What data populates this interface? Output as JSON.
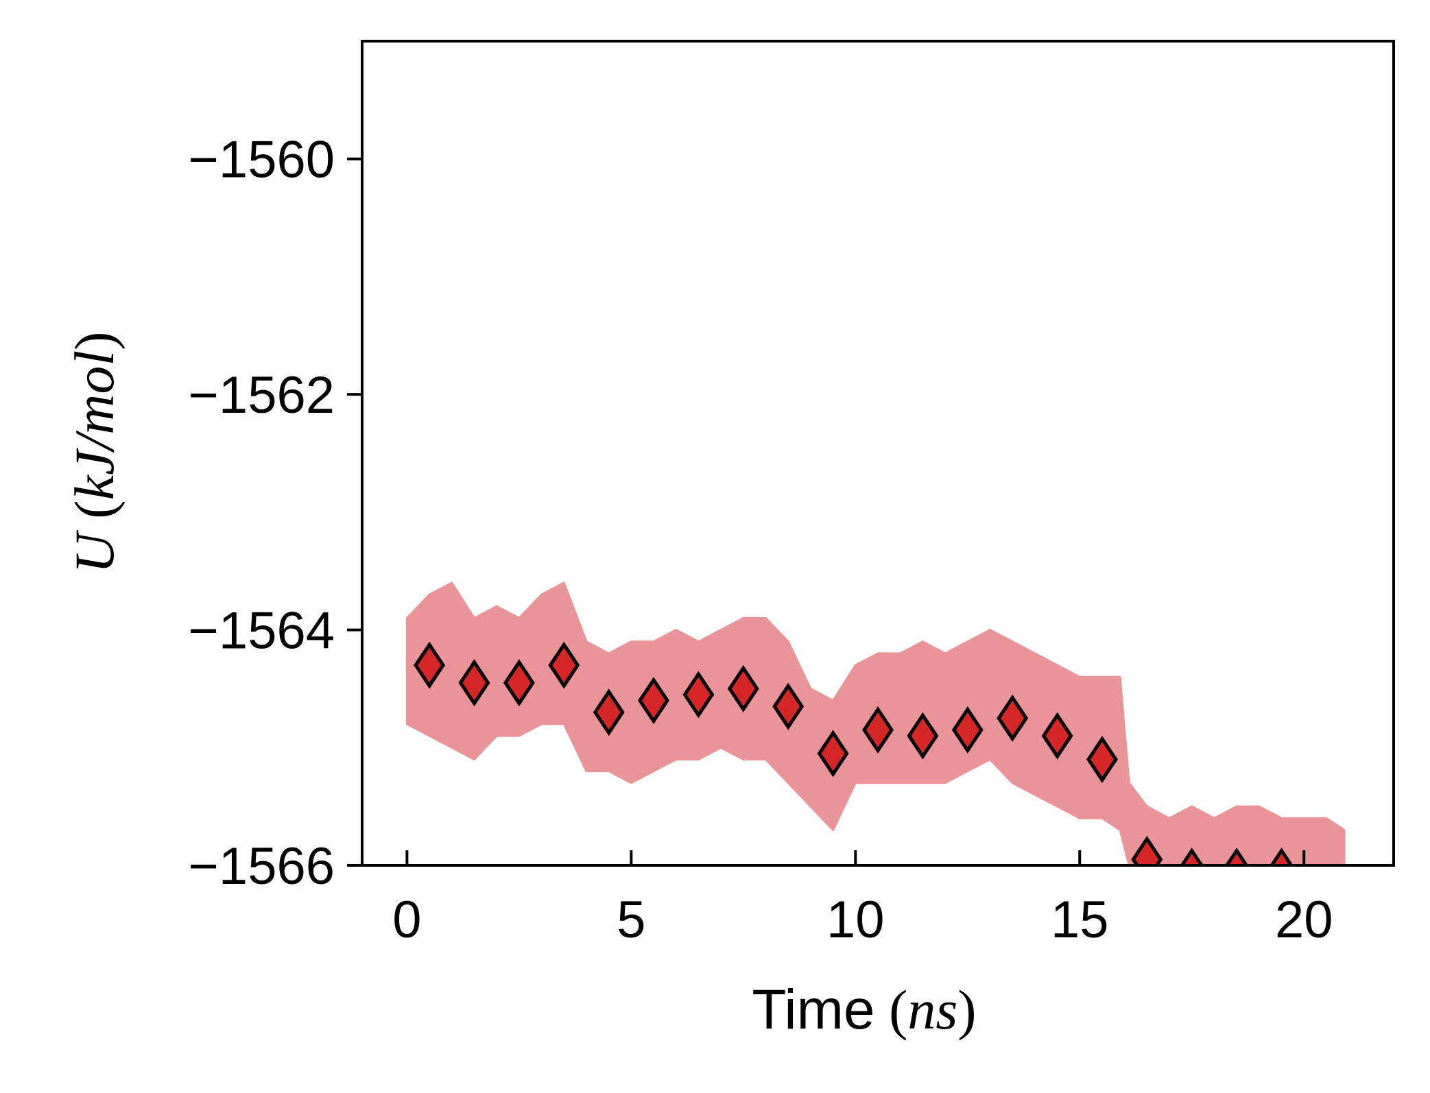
{
  "chart_data": {
    "type": "scatter",
    "title": "",
    "xlabel_text": "Time",
    "xlabel_unit": "ns",
    "ylabel_symbol": "U",
    "ylabel_unit": "kJ/mol",
    "xlim": [
      -1,
      22
    ],
    "ylim": [
      -1566,
      -1559
    ],
    "x_ticks": [
      0,
      5,
      10,
      15,
      20
    ],
    "x_tick_labels": [
      "0",
      "5",
      "10",
      "15",
      "20"
    ],
    "y_ticks": [
      -1566,
      -1564,
      -1562,
      -1560
    ],
    "y_tick_labels": [
      "−1566",
      "−1564",
      "−1562",
      "−1560"
    ],
    "grid": false,
    "legend": "none",
    "colors": {
      "trace": "#e99496",
      "marker_fill": "#d62728",
      "marker_edge": "#000000"
    },
    "series": [
      {
        "kind": "band",
        "x": [
          0.0,
          0.5,
          1.0,
          1.5,
          2.0,
          2.5,
          3.0,
          3.5,
          4.0,
          4.5,
          5.0,
          5.5,
          6.0,
          6.5,
          7.0,
          7.5,
          8.0,
          8.5,
          9.0,
          9.5,
          10.0,
          10.5,
          11.0,
          11.5,
          12.0,
          12.5,
          13.0,
          13.5,
          14.0,
          14.5,
          15.0,
          15.5,
          15.9,
          16.1,
          16.5,
          17.0,
          17.5,
          18.0,
          18.5,
          19.0,
          19.5,
          20.0,
          20.5,
          20.9
        ],
        "upper": [
          -1563.9,
          -1563.7,
          -1563.6,
          -1563.9,
          -1563.8,
          -1563.9,
          -1563.7,
          -1563.6,
          -1564.1,
          -1564.2,
          -1564.1,
          -1564.1,
          -1564.0,
          -1564.1,
          -1564.0,
          -1563.9,
          -1563.9,
          -1564.1,
          -1564.5,
          -1564.6,
          -1564.3,
          -1564.2,
          -1564.2,
          -1564.1,
          -1564.2,
          -1564.1,
          -1564.0,
          -1564.1,
          -1564.2,
          -1564.3,
          -1564.4,
          -1564.4,
          -1564.4,
          -1565.3,
          -1565.5,
          -1565.6,
          -1565.5,
          -1565.6,
          -1565.5,
          -1565.5,
          -1565.6,
          -1565.6,
          -1565.6,
          -1565.7
        ],
        "lower": [
          -1564.8,
          -1564.9,
          -1565.0,
          -1565.1,
          -1564.9,
          -1564.9,
          -1564.8,
          -1564.8,
          -1565.2,
          -1565.2,
          -1565.3,
          -1565.2,
          -1565.1,
          -1565.1,
          -1565.0,
          -1565.1,
          -1565.1,
          -1565.3,
          -1565.5,
          -1565.7,
          -1565.3,
          -1565.3,
          -1565.3,
          -1565.3,
          -1565.3,
          -1565.2,
          -1565.1,
          -1565.3,
          -1565.4,
          -1565.5,
          -1565.6,
          -1565.6,
          -1565.7,
          -1566.0,
          -1566.0,
          -1566.0,
          -1566.0,
          -1566.0,
          -1566.0,
          -1566.0,
          -1566.0,
          -1566.0,
          -1566.0,
          -1566.0
        ]
      },
      {
        "kind": "markers",
        "marker": "thin_diamond",
        "x": [
          0.5,
          1.5,
          2.5,
          3.5,
          4.5,
          5.5,
          6.5,
          7.5,
          8.5,
          9.5,
          10.5,
          11.5,
          12.5,
          13.5,
          14.5,
          15.5,
          16.5,
          17.5,
          18.5,
          19.5
        ],
        "y": [
          -1564.3,
          -1564.45,
          -1564.45,
          -1564.3,
          -1564.7,
          -1564.6,
          -1564.55,
          -1564.5,
          -1564.65,
          -1565.05,
          -1564.85,
          -1564.9,
          -1564.85,
          -1564.75,
          -1564.9,
          -1565.1,
          -1565.95,
          -1566.05,
          -1566.05,
          -1566.05
        ]
      }
    ]
  }
}
